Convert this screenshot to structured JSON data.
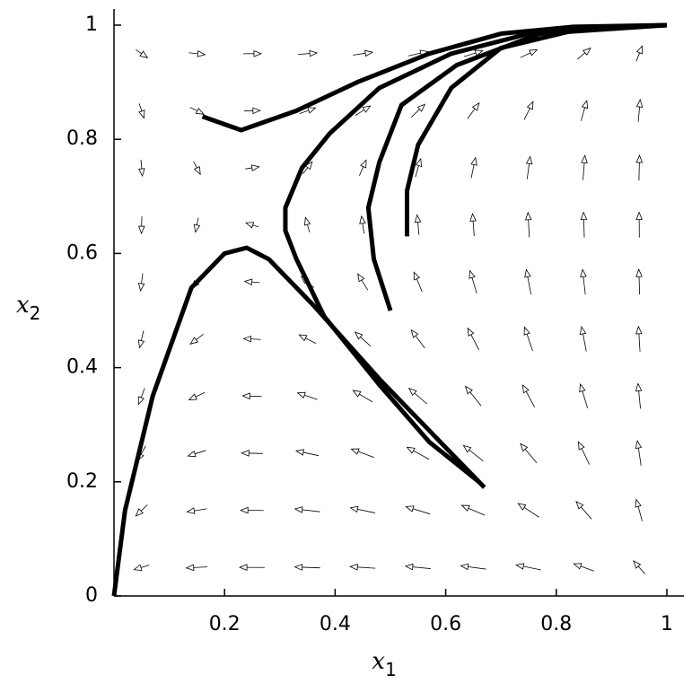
{
  "chart_data": {
    "type": "phase-portrait",
    "xlabel": {
      "symbol": "x",
      "subscript": "1"
    },
    "ylabel": {
      "symbol": "x",
      "subscript": "2"
    },
    "xlim": [
      0,
      1
    ],
    "ylim": [
      0,
      1
    ],
    "xticks": [
      0.2,
      0.4,
      0.6,
      0.8,
      1
    ],
    "yticks": [
      0,
      0.2,
      0.4,
      0.6,
      0.8,
      1
    ],
    "field": {
      "color": "#000000",
      "x": [
        0.05,
        0.15,
        0.25,
        0.35,
        0.45,
        0.55,
        0.65,
        0.75,
        0.85,
        0.95
      ],
      "y": [
        0.05,
        0.15,
        0.25,
        0.35,
        0.45,
        0.55,
        0.65,
        0.75,
        0.85,
        0.95
      ],
      "u": [
        [
          -0.03,
          -0.08,
          -0.118,
          -0.143,
          -0.156,
          -0.156,
          -0.143,
          -0.118,
          -0.08,
          -0.03
        ],
        [
          -0.025,
          -0.068,
          -0.099,
          -0.121,
          -0.131,
          -0.131,
          -0.121,
          -0.099,
          -0.068,
          -0.025
        ],
        [
          -0.02,
          -0.055,
          -0.081,
          -0.098,
          -0.106,
          -0.106,
          -0.098,
          -0.081,
          -0.055,
          -0.02
        ],
        [
          -0.016,
          -0.042,
          -0.062,
          -0.075,
          -0.082,
          -0.082,
          -0.075,
          -0.062,
          -0.042,
          -0.016
        ],
        [
          -0.011,
          -0.029,
          -0.043,
          -0.052,
          -0.057,
          -0.057,
          -0.052,
          -0.043,
          -0.029,
          -0.011
        ],
        [
          -0.006,
          -0.017,
          -0.024,
          -0.03,
          -0.032,
          -0.032,
          -0.03,
          -0.024,
          -0.017,
          -0.006
        ],
        [
          -0.001,
          -0.004,
          -0.006,
          -0.007,
          -0.007,
          -0.007,
          -0.007,
          -0.006,
          -0.004,
          -0.001
        ],
        [
          0.003,
          0.009,
          0.013,
          0.016,
          0.017,
          0.017,
          0.016,
          0.013,
          0.009,
          0.003
        ],
        [
          0.008,
          0.022,
          0.032,
          0.039,
          0.042,
          0.042,
          0.039,
          0.032,
          0.022,
          0.008
        ],
        [
          0.013,
          0.034,
          0.051,
          0.061,
          0.067,
          0.067,
          0.061,
          0.051,
          0.034,
          0.013
        ]
      ],
      "v": [
        [
          -0.009,
          -0.004,
          0.0005,
          0.005,
          0.01,
          0.015,
          0.019,
          0.024,
          0.029,
          0.034
        ],
        [
          -0.024,
          -0.011,
          0.001,
          0.014,
          0.027,
          0.04,
          0.052,
          0.065,
          0.078,
          0.091
        ],
        [
          -0.036,
          -0.017,
          0.002,
          0.021,
          0.039,
          0.058,
          0.077,
          0.096,
          0.114,
          0.133
        ],
        [
          -0.043,
          -0.02,
          0.002,
          0.025,
          0.048,
          0.071,
          0.093,
          0.116,
          0.139,
          0.162
        ],
        [
          -0.047,
          -0.022,
          0.002,
          0.027,
          0.052,
          0.077,
          0.101,
          0.126,
          0.151,
          0.176
        ],
        [
          -0.047,
          -0.022,
          0.002,
          0.027,
          0.052,
          0.077,
          0.101,
          0.126,
          0.151,
          0.176
        ],
        [
          -0.043,
          -0.02,
          0.002,
          0.025,
          0.048,
          0.071,
          0.093,
          0.116,
          0.139,
          0.162
        ],
        [
          -0.036,
          -0.017,
          0.002,
          0.021,
          0.039,
          0.058,
          0.077,
          0.096,
          0.114,
          0.133
        ],
        [
          -0.024,
          -0.011,
          0.001,
          0.014,
          0.027,
          0.04,
          0.052,
          0.065,
          0.078,
          0.091
        ],
        [
          -0.009,
          -0.004,
          0.0005,
          0.005,
          0.01,
          0.015,
          0.019,
          0.024,
          0.029,
          0.034
        ]
      ]
    },
    "series": [
      {
        "color": "#000000",
        "x": [
          0.16,
          0.23,
          0.33,
          0.44,
          0.57,
          0.7,
          0.83,
          1
        ],
        "y": [
          0.84,
          0.816,
          0.85,
          0.9,
          0.95,
          0.985,
          0.997,
          1
        ]
      },
      {
        "color": "#000000",
        "x": [
          0,
          0.02,
          0.07,
          0.14,
          0.2,
          0.24,
          0.28,
          0.36,
          0.48,
          0.57,
          0.67
        ],
        "y": [
          0,
          0.15,
          0.35,
          0.54,
          0.6,
          0.61,
          0.59,
          0.51,
          0.38,
          0.29,
          0.19
        ]
      },
      {
        "color": "#000000",
        "x": [
          0.66,
          0.57,
          0.48,
          0.38,
          0.33,
          0.31,
          0.31,
          0.34,
          0.39,
          0.48,
          0.61,
          0.77,
          1
        ],
        "y": [
          0.2,
          0.27,
          0.37,
          0.49,
          0.59,
          0.64,
          0.68,
          0.75,
          0.81,
          0.89,
          0.95,
          0.99,
          1
        ]
      },
      {
        "color": "#000000",
        "x": [
          0.5,
          0.47,
          0.46,
          0.48,
          0.52,
          0.62,
          0.77,
          1
        ],
        "y": [
          0.5,
          0.59,
          0.68,
          0.76,
          0.86,
          0.93,
          0.985,
          1
        ]
      },
      {
        "color": "#000000",
        "x": [
          0.53,
          0.53,
          0.55,
          0.61,
          0.7,
          0.85,
          1
        ],
        "y": [
          0.63,
          0.71,
          0.79,
          0.89,
          0.96,
          0.995,
          1
        ]
      }
    ]
  }
}
